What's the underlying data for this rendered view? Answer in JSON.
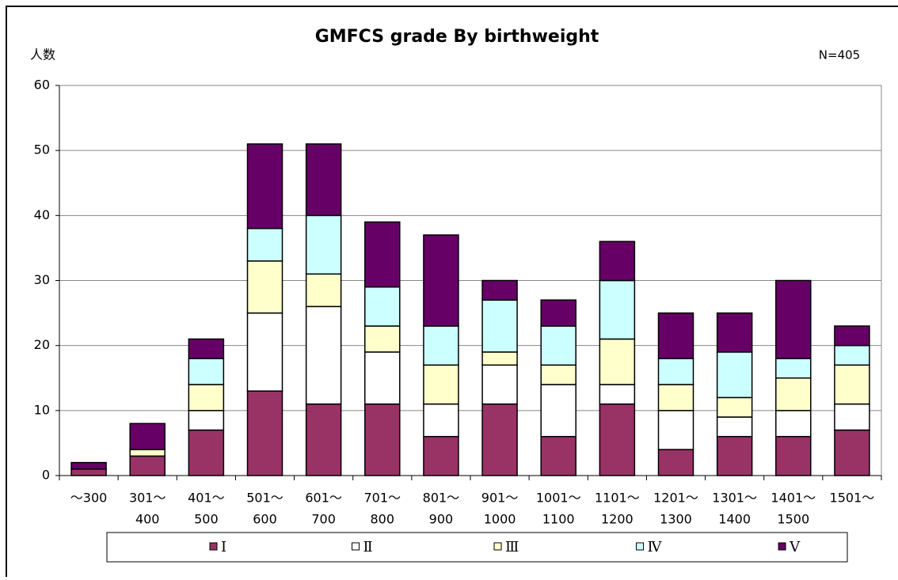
{
  "chart_data": {
    "type": "stacked_bar",
    "title": "GMFCS grade By birthweight",
    "y_label": "人数",
    "annotation": "N=405",
    "categories": [
      [
        "～300"
      ],
      [
        "301～",
        "400"
      ],
      [
        "401～",
        "500"
      ],
      [
        "501～",
        "600"
      ],
      [
        "601～",
        "700"
      ],
      [
        "701～",
        "800"
      ],
      [
        "801～",
        "900"
      ],
      [
        "901～",
        "1000"
      ],
      [
        "1001～",
        "1100"
      ],
      [
        "1101～",
        "1200"
      ],
      [
        "1201～",
        "1300"
      ],
      [
        "1301～",
        "1400"
      ],
      [
        "1401～",
        "1500"
      ],
      [
        "1501～"
      ]
    ],
    "series": [
      {
        "name": "Ⅰ",
        "color": "#993366",
        "values": [
          1,
          3,
          7,
          13,
          11,
          11,
          6,
          11,
          6,
          11,
          4,
          6,
          6,
          7
        ]
      },
      {
        "name": "Ⅱ",
        "color": "#ffffff",
        "values": [
          0,
          0,
          3,
          12,
          15,
          8,
          5,
          6,
          8,
          3,
          6,
          3,
          4,
          4
        ]
      },
      {
        "name": "Ⅲ",
        "color": "#ffffcc",
        "values": [
          0,
          1,
          4,
          8,
          5,
          4,
          6,
          2,
          3,
          7,
          4,
          3,
          5,
          6
        ]
      },
      {
        "name": "Ⅳ",
        "color": "#ccffff",
        "values": [
          0,
          0,
          4,
          5,
          9,
          6,
          6,
          8,
          6,
          9,
          4,
          7,
          3,
          3
        ]
      },
      {
        "name": "Ⅴ",
        "color": "#660066",
        "values": [
          1,
          4,
          3,
          13,
          11,
          10,
          14,
          3,
          4,
          6,
          7,
          6,
          12,
          3
        ]
      }
    ],
    "ylim": [
      0,
      60
    ],
    "yticks": [
      0,
      10,
      20,
      30,
      40,
      50,
      60
    ],
    "grid": true,
    "legend": "bottom"
  }
}
